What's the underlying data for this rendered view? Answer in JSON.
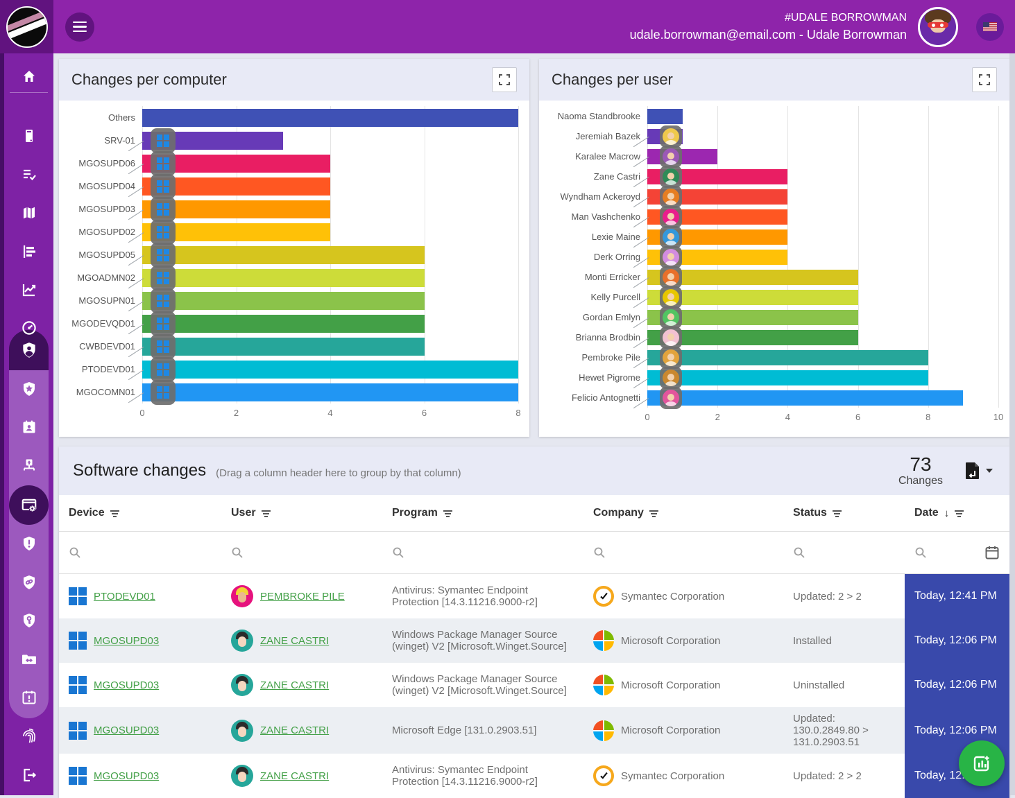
{
  "topbar": {
    "title": "#UDALE BORROWMAN",
    "subtitle": "udale.borrowman@email.com - Udale Borrowman",
    "avatar": "superhero-avatar",
    "language_flag": "us-flag"
  },
  "sidebar": {
    "icons": [
      "home",
      "devices",
      "task-list",
      "map",
      "bar-chart",
      "line-chart",
      "gauge",
      "user-shield",
      "shield-star",
      "id-calendar",
      "network-upload",
      "software-gear",
      "shield-alert",
      "shield-link",
      "shield-key",
      "folder-sync",
      "calendar-alert",
      "fingerprint",
      "logout"
    ],
    "active_item": "software-gear",
    "active_section": "user-shield"
  },
  "chart_data": [
    {
      "type": "bar",
      "orientation": "horizontal",
      "title": "Changes per computer",
      "categories": [
        "Others",
        "SRV-01",
        "MGOSUPD06",
        "MGOSUPD04",
        "MGOSUPD03",
        "MGOSUPD02",
        "MGOSUPD05",
        "MGOADMN02",
        "MGOSUPN01",
        "MGODEVQD01",
        "CWBDEVD01",
        "PTODEVD01",
        "MGOCOMN01"
      ],
      "values": [
        8,
        3,
        4,
        4,
        4,
        4,
        6,
        6,
        6,
        6,
        6,
        8,
        8
      ],
      "bar_colors": [
        "#3F51B5",
        "#673AB7",
        "#E91E63",
        "#FF5722",
        "#FF9800",
        "#FFC107",
        "#D6C51E",
        "#CDDC39",
        "#8BC34A",
        "#43A047",
        "#26A69A",
        "#00BCD4",
        "#2196F3"
      ],
      "xlim": [
        0,
        8
      ],
      "ticks": [
        0,
        2,
        4,
        6,
        8
      ],
      "grid": true,
      "row_icon": "windows"
    },
    {
      "type": "bar",
      "orientation": "horizontal",
      "title": "Changes per user",
      "categories": [
        "Naoma Standbrooke",
        "Jeremiah Bazek",
        "Karalee Macrow",
        "Zane Castri",
        "Wyndham Ackeroyd",
        "Man Vashchenko",
        "Lexie Maine",
        "Derk Orring",
        "Monti Erricker",
        "Kelly Purcell",
        "Gordan Emlyn",
        "Brianna Brodbin",
        "Pembroke Pile",
        "Hewet Pigrome",
        "Felicio Antognetti"
      ],
      "values": [
        1,
        1,
        2,
        4,
        4,
        4,
        4,
        4,
        6,
        6,
        6,
        6,
        8,
        8,
        9
      ],
      "bar_colors": [
        "#3F51B5",
        "#673AB7",
        "#9C27B0",
        "#E91E63",
        "#F44336",
        "#FF5722",
        "#FF9800",
        "#FFC107",
        "#D6C51E",
        "#CDDC39",
        "#8BC34A",
        "#43A047",
        "#26A69A",
        "#00BCD4",
        "#2196F3"
      ],
      "icon_colors": [
        "#E7C24F",
        "#EFC94C",
        "#9B59B6",
        "#2E8B57",
        "#E67E22",
        "#E91E8C",
        "#3498DB",
        "#D28CE0",
        "#E8702A",
        "#E7C600",
        "#52C462",
        "#F2C1D1",
        "#E2A33C",
        "#C9882F",
        "#E2559C"
      ],
      "xlim": [
        0,
        10
      ],
      "ticks": [
        0,
        2,
        4,
        6,
        8,
        10
      ],
      "grid": true,
      "row_icon": "avatar"
    }
  ],
  "table": {
    "title": "Software changes",
    "hint": "(Drag a column header here to group by that column)",
    "count": "73",
    "count_label": "Changes",
    "export_icon": "export-file",
    "columns": [
      {
        "label": "Device",
        "filter": true
      },
      {
        "label": "User",
        "filter": true
      },
      {
        "label": "Program",
        "filter": true
      },
      {
        "label": "Company",
        "filter": true
      },
      {
        "label": "Status",
        "filter": true
      },
      {
        "label": "Date",
        "filter": true,
        "sorted": "desc",
        "search_icon_extra": "calendar"
      }
    ],
    "rows": [
      {
        "device": "PTODEVD01",
        "user": "PEMBROKE PILE",
        "avatar": {
          "bg": "#E6127D",
          "hair": "#F2D335",
          "skin": "#EBB88F"
        },
        "program": "Antivirus: Symantec Endpoint Protection [14.3.11216.9000-r2]",
        "company": "Symantec Corporation",
        "company_icon": "symantec",
        "status": "Updated: 2 > 2",
        "date": "Today, 12:41 PM"
      },
      {
        "device": "MGOSUPD03",
        "user": "ZANE CASTRI",
        "avatar": {
          "bg": "#26A69A",
          "hair": "#2B2B2B",
          "skin": "#F5D7C0"
        },
        "program": "Windows Package Manager Source (winget) V2 [Microsoft.Winget.Source]",
        "company": "Microsoft Corporation",
        "company_icon": "microsoft",
        "status": "Installed",
        "date": "Today, 12:06 PM"
      },
      {
        "device": "MGOSUPD03",
        "user": "ZANE CASTRI",
        "avatar": {
          "bg": "#26A69A",
          "hair": "#2B2B2B",
          "skin": "#F5D7C0"
        },
        "program": "Windows Package Manager Source (winget) V2 [Microsoft.Winget.Source]",
        "company": "Microsoft Corporation",
        "company_icon": "microsoft",
        "status": "Uninstalled",
        "date": "Today, 12:06 PM"
      },
      {
        "device": "MGOSUPD03",
        "user": "ZANE CASTRI",
        "avatar": {
          "bg": "#26A69A",
          "hair": "#2B2B2B",
          "skin": "#F5D7C0"
        },
        "program": "Microsoft Edge [131.0.2903.51]",
        "company": "Microsoft Corporation",
        "company_icon": "microsoft",
        "status": "Updated: 130.0.2849.80 > 131.0.2903.51",
        "date": "Today, 12:06 PM"
      },
      {
        "device": "MGOSUPD03",
        "user": "ZANE CASTRI",
        "avatar": {
          "bg": "#26A69A",
          "hair": "#2B2B2B",
          "skin": "#F5D7C0"
        },
        "program": "Antivirus: Symantec Endpoint Protection [14.3.11216.9000-r2]",
        "company": "Symantec Corporation",
        "company_icon": "symantec",
        "status": "Updated: 2 > 2",
        "date": "Today, 12:06 PM"
      }
    ]
  },
  "fab": {
    "icon": "add-chart"
  },
  "colors": {
    "header_purple": "#8E24AA",
    "sidebar_purple": "#7E22A5",
    "dark_purple": "#61137F",
    "active_dark": "#3E0F5B",
    "submenu_purple": "#9C59BE",
    "date_column": "#3949AB",
    "link_green": "#43A047",
    "fab_green": "#28B446",
    "card_header": "#E8EAF6"
  }
}
